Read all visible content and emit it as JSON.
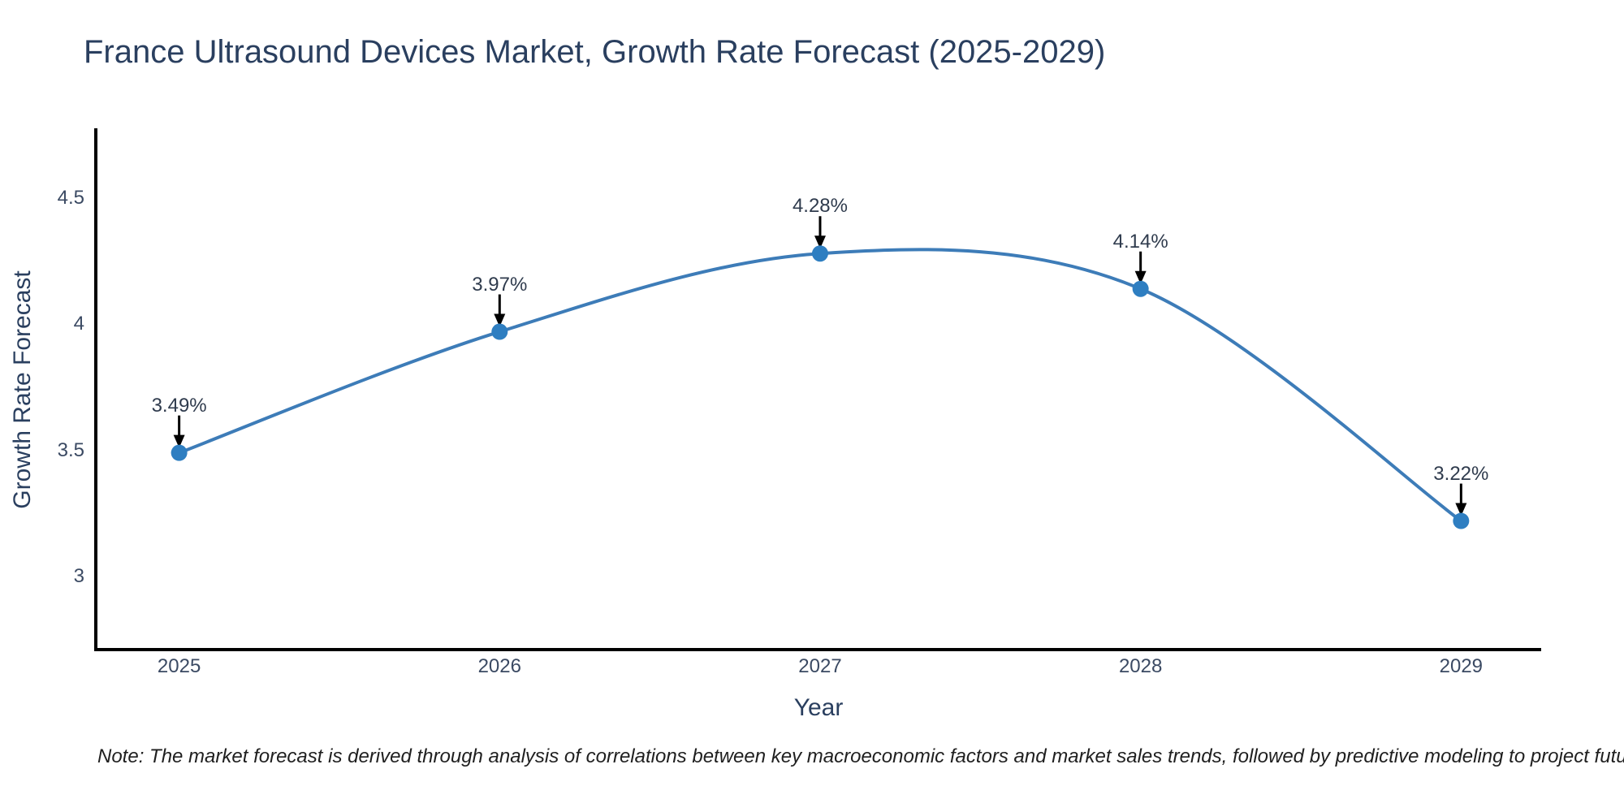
{
  "page": {
    "note": "Note: The market forecast is derived through analysis of correlations between key macroeconomic factors and market sales trends, followed by predictive modeling to project future sales"
  },
  "chart_data": {
    "type": "line",
    "title": "France Ultrasound Devices Market, Growth Rate Forecast (2025-2029)",
    "x": [
      2025,
      2026,
      2027,
      2028,
      2029
    ],
    "series": [
      {
        "name": "Growth Rate Forecast",
        "values": [
          3.49,
          3.97,
          4.28,
          4.14,
          3.22
        ]
      }
    ],
    "point_labels": [
      "3.49%",
      "3.97%",
      "4.28%",
      "4.14%",
      "3.22%"
    ],
    "xlabel": "Year",
    "ylabel": "Growth Rate Forecast",
    "xtick_labels": [
      "2025",
      "2026",
      "2027",
      "2028",
      "2029"
    ],
    "ytick_values": [
      3,
      3.5,
      4,
      4.5
    ],
    "ytick_labels": [
      "3",
      "3.5",
      "4",
      "4.5"
    ],
    "xlim": [
      2024.74,
      2029.25
    ],
    "ylim": [
      2.71,
      4.77
    ],
    "grid": false,
    "legend": "none",
    "line_shape": "spline",
    "colors": {
      "line": "#3d7cb8",
      "marker": "#2e7ec1",
      "axis": "#000000",
      "arrow": "#000000",
      "title_text": "#2a3f5f",
      "tick_text": "#3b4a63",
      "annotation_text": "#2f3b4d",
      "note_text": "#1f1f1f"
    }
  }
}
